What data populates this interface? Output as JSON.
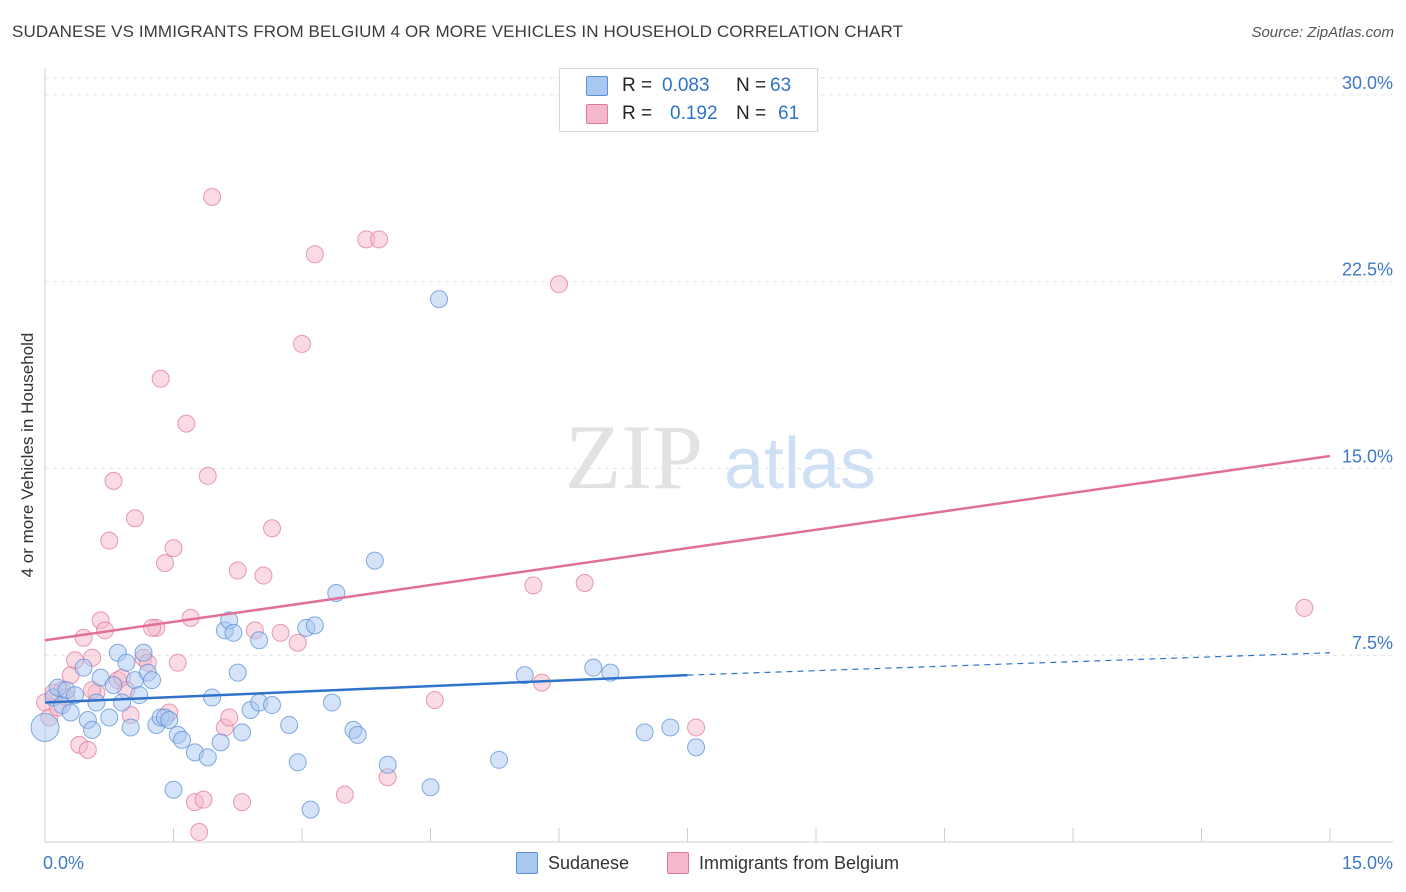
{
  "title": "SUDANESE VS IMMIGRANTS FROM BELGIUM 4 OR MORE VEHICLES IN HOUSEHOLD CORRELATION CHART",
  "source": "Source: ZipAtlas.com",
  "watermark": {
    "zip": "ZIP",
    "atlas": "atlas"
  },
  "legend_top": [
    {
      "r_label": "R =",
      "r_value": "0.083",
      "n_label": "N =",
      "n_value": "63"
    },
    {
      "r_label": "R =",
      "r_value": "0.192",
      "n_label": "N =",
      "n_value": "61"
    }
  ],
  "colors": {
    "sudanese_fill": "#a9c8ef",
    "sudanese_stroke": "#5b90d6",
    "sudanese_line": "#2f72c9",
    "belgium_fill": "#f5b8ca",
    "belgium_stroke": "#e07a9c",
    "belgium_line": "#e0709a",
    "axis_text": "#3f78c8",
    "grid": "#e3e3e3"
  },
  "chart_data": {
    "type": "scatter",
    "ylabel": "4 or more Vehicles in Household",
    "xlim": [
      0,
      15
    ],
    "ylim": [
      0,
      31
    ],
    "x_tick_labels": [
      "0.0%",
      "15.0%"
    ],
    "y_ticks": [
      7.5,
      15.0,
      22.5,
      30.0
    ],
    "y_tick_labels": [
      "7.5%",
      "15.0%",
      "22.5%",
      "30.0%"
    ],
    "grid": true,
    "series": [
      {
        "name": "Sudanese",
        "r": 0.083,
        "n": 63,
        "trend": {
          "x0": 0.0,
          "y0": 5.6,
          "x1": 7.5,
          "y1": 6.7,
          "dashed_to_x": 15.0,
          "dashed_to_y": 7.6
        },
        "points": [
          [
            0.0,
            4.6
          ],
          [
            0.1,
            5.8
          ],
          [
            0.15,
            6.2
          ],
          [
            0.2,
            5.5
          ],
          [
            0.25,
            6.1
          ],
          [
            0.3,
            5.2
          ],
          [
            0.35,
            5.9
          ],
          [
            0.45,
            7.0
          ],
          [
            0.5,
            4.9
          ],
          [
            0.55,
            4.5
          ],
          [
            0.6,
            5.6
          ],
          [
            0.65,
            6.6
          ],
          [
            0.75,
            5.0
          ],
          [
            0.8,
            6.3
          ],
          [
            0.85,
            7.6
          ],
          [
            0.9,
            5.6
          ],
          [
            0.95,
            7.2
          ],
          [
            1.0,
            4.6
          ],
          [
            1.05,
            6.5
          ],
          [
            1.1,
            5.9
          ],
          [
            1.15,
            7.6
          ],
          [
            1.2,
            6.8
          ],
          [
            1.25,
            6.5
          ],
          [
            1.3,
            4.7
          ],
          [
            1.35,
            5.0
          ],
          [
            1.4,
            5.0
          ],
          [
            1.45,
            4.9
          ],
          [
            1.5,
            2.1
          ],
          [
            1.55,
            4.3
          ],
          [
            1.6,
            4.1
          ],
          [
            1.75,
            3.6
          ],
          [
            1.9,
            3.4
          ],
          [
            1.95,
            5.8
          ],
          [
            2.05,
            4.0
          ],
          [
            2.1,
            8.5
          ],
          [
            2.15,
            8.9
          ],
          [
            2.2,
            8.4
          ],
          [
            2.25,
            6.8
          ],
          [
            2.3,
            4.4
          ],
          [
            2.4,
            5.3
          ],
          [
            2.5,
            5.6
          ],
          [
            2.5,
            8.1
          ],
          [
            2.65,
            5.5
          ],
          [
            2.85,
            4.7
          ],
          [
            2.95,
            3.2
          ],
          [
            3.05,
            8.6
          ],
          [
            3.15,
            8.7
          ],
          [
            3.1,
            1.3
          ],
          [
            3.35,
            5.6
          ],
          [
            3.4,
            10.0
          ],
          [
            3.6,
            4.5
          ],
          [
            3.65,
            4.3
          ],
          [
            3.85,
            11.3
          ],
          [
            4.0,
            3.1
          ],
          [
            4.5,
            2.2
          ],
          [
            4.6,
            21.8
          ],
          [
            5.3,
            3.3
          ],
          [
            5.6,
            6.7
          ],
          [
            6.4,
            7.0
          ],
          [
            6.6,
            6.8
          ],
          [
            7.0,
            4.4
          ],
          [
            7.6,
            3.8
          ],
          [
            7.3,
            4.6
          ]
        ]
      },
      {
        "name": "Immigrants from Belgium",
        "r": 0.192,
        "n": 61,
        "trend": {
          "x0": 0.0,
          "y0": 8.1,
          "x1": 15.0,
          "y1": 15.5
        },
        "points": [
          [
            0.0,
            5.6
          ],
          [
            0.05,
            5.0
          ],
          [
            0.1,
            6.0
          ],
          [
            0.15,
            5.4
          ],
          [
            0.2,
            6.1
          ],
          [
            0.25,
            5.8
          ],
          [
            0.3,
            6.7
          ],
          [
            0.35,
            7.3
          ],
          [
            0.4,
            3.9
          ],
          [
            0.45,
            8.2
          ],
          [
            0.5,
            3.7
          ],
          [
            0.55,
            7.4
          ],
          [
            0.6,
            6.0
          ],
          [
            0.65,
            8.9
          ],
          [
            0.7,
            8.5
          ],
          [
            0.75,
            12.1
          ],
          [
            0.8,
            14.5
          ],
          [
            0.85,
            6.5
          ],
          [
            0.9,
            6.6
          ],
          [
            0.95,
            6.1
          ],
          [
            1.0,
            5.1
          ],
          [
            1.05,
            13.0
          ],
          [
            1.15,
            7.4
          ],
          [
            1.2,
            7.2
          ],
          [
            1.3,
            8.6
          ],
          [
            1.35,
            18.6
          ],
          [
            1.4,
            11.2
          ],
          [
            1.45,
            5.2
          ],
          [
            1.5,
            11.8
          ],
          [
            1.55,
            7.2
          ],
          [
            1.65,
            16.8
          ],
          [
            1.7,
            9.0
          ],
          [
            1.75,
            1.6
          ],
          [
            1.8,
            0.4
          ],
          [
            1.85,
            1.7
          ],
          [
            1.9,
            14.7
          ],
          [
            1.95,
            25.9
          ],
          [
            2.1,
            4.6
          ],
          [
            2.15,
            5.0
          ],
          [
            2.25,
            10.9
          ],
          [
            2.3,
            1.6
          ],
          [
            2.45,
            8.5
          ],
          [
            2.55,
            10.7
          ],
          [
            2.65,
            12.6
          ],
          [
            2.75,
            8.4
          ],
          [
            2.95,
            8.0
          ],
          [
            3.0,
            20.0
          ],
          [
            3.15,
            23.6
          ],
          [
            3.5,
            1.9
          ],
          [
            3.75,
            24.2
          ],
          [
            3.9,
            24.2
          ],
          [
            4.0,
            2.6
          ],
          [
            4.55,
            5.7
          ],
          [
            5.7,
            10.3
          ],
          [
            5.8,
            6.4
          ],
          [
            6.0,
            22.4
          ],
          [
            6.3,
            10.4
          ],
          [
            7.6,
            4.6
          ],
          [
            14.7,
            9.4
          ],
          [
            1.25,
            8.6
          ],
          [
            0.55,
            6.1
          ]
        ]
      }
    ]
  }
}
